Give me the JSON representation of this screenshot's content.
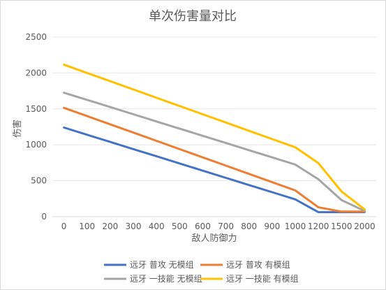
{
  "chart_data": {
    "type": "line",
    "title": "单次伤害量对比",
    "xlabel": "敌人防御力",
    "ylabel": "伤害",
    "categories": [
      "0",
      "100",
      "200",
      "300",
      "400",
      "500",
      "600",
      "700",
      "800",
      "900",
      "1000",
      "1200",
      "1500",
      "2000"
    ],
    "ylim": [
      0,
      2500
    ],
    "yticks": [
      "0",
      "500",
      "1000",
      "1500",
      "2000",
      "2500"
    ],
    "grid": true,
    "legend_position": "bottom",
    "series": [
      {
        "name": "远牙 普攻 无模组",
        "color": "#4472c4",
        "values": [
          1240,
          1140,
          1040,
          940,
          840,
          740,
          640,
          540,
          440,
          340,
          240,
          62,
          62,
          62
        ]
      },
      {
        "name": "远牙 普攻 有模组",
        "color": "#ed7d31",
        "values": [
          1515,
          1400,
          1285,
          1170,
          1055,
          940,
          825,
          710,
          595,
          480,
          365,
          130,
          70,
          70
        ]
      },
      {
        "name": "远牙 一技能 无模组",
        "color": "#a5a5a5",
        "values": [
          1725,
          1625,
          1525,
          1425,
          1325,
          1225,
          1125,
          1025,
          925,
          825,
          725,
          520,
          230,
          80
        ]
      },
      {
        "name": "远牙 一技能 有模组",
        "color": "#ffc000",
        "values": [
          2115,
          2000,
          1885,
          1770,
          1655,
          1540,
          1425,
          1310,
          1195,
          1080,
          965,
          745,
          350,
          100
        ]
      }
    ]
  }
}
